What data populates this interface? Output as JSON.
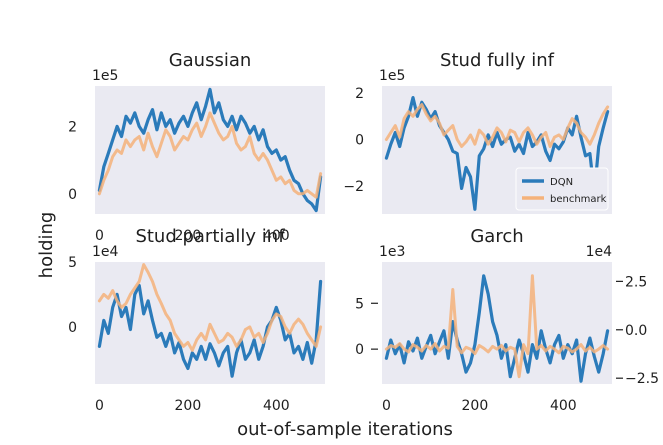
{
  "figure": {
    "xlabel": "out-of-sample iterations",
    "ylabel": "holding"
  },
  "colors": {
    "plot_bg": "#eaeaf2",
    "dqn": "#2b7bba",
    "benchmark": "#f5b27a",
    "text": "#1f1f1f"
  },
  "legend": {
    "location": "lower-right of Stud fully inf panel",
    "entries": [
      "DQN",
      "benchmark"
    ]
  },
  "chart_data": [
    {
      "type": "line",
      "title": "Gaussian",
      "scale_label": "1e5",
      "xlim": [
        -10,
        510
      ],
      "ylim": [
        -0.6,
        3.2
      ],
      "xticks": [
        {
          "v": 0,
          "label": "0"
        },
        {
          "v": 200,
          "label": "200"
        },
        {
          "v": 400,
          "label": "400"
        }
      ],
      "yticks": [
        {
          "v": 0,
          "label": "0"
        },
        {
          "v": 2,
          "label": "2"
        }
      ],
      "series": [
        {
          "name": "DQN",
          "color": "#2b7bba",
          "x": [
            0,
            10,
            20,
            30,
            40,
            50,
            60,
            70,
            80,
            90,
            100,
            110,
            120,
            130,
            140,
            150,
            160,
            170,
            180,
            190,
            200,
            210,
            220,
            230,
            240,
            250,
            260,
            270,
            280,
            290,
            300,
            310,
            320,
            330,
            340,
            350,
            360,
            370,
            380,
            390,
            400,
            410,
            420,
            430,
            440,
            450,
            460,
            470,
            480,
            490,
            500
          ],
          "y": [
            0.1,
            0.8,
            1.2,
            1.6,
            2.0,
            1.7,
            2.3,
            2.1,
            2.4,
            2.0,
            1.8,
            2.2,
            2.5,
            1.9,
            2.4,
            2.0,
            2.2,
            1.8,
            2.1,
            2.3,
            2.0,
            2.4,
            2.7,
            2.2,
            2.6,
            3.1,
            2.4,
            2.7,
            2.2,
            2.0,
            2.3,
            1.9,
            2.3,
            2.1,
            1.8,
            2.0,
            1.6,
            1.9,
            1.4,
            1.2,
            1.3,
            1.0,
            1.1,
            0.7,
            0.4,
            0.3,
            0.0,
            -0.2,
            -0.3,
            -0.5,
            0.5
          ]
        },
        {
          "name": "benchmark",
          "color": "#f5b27a",
          "x": [
            0,
            10,
            20,
            30,
            40,
            50,
            60,
            70,
            80,
            90,
            100,
            110,
            120,
            130,
            140,
            150,
            160,
            170,
            180,
            190,
            200,
            210,
            220,
            230,
            240,
            250,
            260,
            270,
            280,
            290,
            300,
            310,
            320,
            330,
            340,
            350,
            360,
            370,
            380,
            390,
            400,
            410,
            420,
            430,
            440,
            450,
            460,
            470,
            480,
            490,
            500
          ],
          "y": [
            0.0,
            0.4,
            0.7,
            1.1,
            1.3,
            1.2,
            1.6,
            1.4,
            1.6,
            1.7,
            1.3,
            1.8,
            1.4,
            1.1,
            1.5,
            1.9,
            1.7,
            1.3,
            1.5,
            1.7,
            1.6,
            1.9,
            2.1,
            1.7,
            2.0,
            2.4,
            2.1,
            1.8,
            1.6,
            1.7,
            2.0,
            1.5,
            1.3,
            1.4,
            1.7,
            1.2,
            1.0,
            1.2,
            1.0,
            0.7,
            0.4,
            0.5,
            0.3,
            0.4,
            0.1,
            0.0,
            0.0,
            0.1,
            0.0,
            -0.1,
            0.6
          ]
        }
      ]
    },
    {
      "type": "line",
      "title": "Stud fully inf",
      "scale_label": "1e5",
      "xlim": [
        -10,
        510
      ],
      "ylim": [
        -3.2,
        2.3
      ],
      "xticks": [],
      "yticks": [
        {
          "v": 2,
          "label": "2"
        },
        {
          "v": 0,
          "label": "0"
        },
        {
          "v": -2,
          "label": "−2"
        }
      ],
      "series": [
        {
          "name": "DQN",
          "color": "#2b7bba",
          "x": [
            0,
            10,
            20,
            30,
            40,
            50,
            60,
            70,
            80,
            90,
            100,
            110,
            120,
            130,
            140,
            150,
            160,
            170,
            180,
            190,
            200,
            210,
            220,
            230,
            240,
            250,
            260,
            270,
            280,
            290,
            300,
            310,
            320,
            330,
            340,
            350,
            360,
            370,
            380,
            390,
            400,
            410,
            420,
            430,
            440,
            450,
            460,
            470,
            480,
            490,
            500
          ],
          "y": [
            -0.8,
            -0.2,
            0.3,
            -0.3,
            0.5,
            1.0,
            1.8,
            1.0,
            1.6,
            1.3,
            0.9,
            1.2,
            0.6,
            0.3,
            0.0,
            -0.5,
            -0.6,
            -2.1,
            -1.2,
            -1.6,
            -3.0,
            -0.7,
            -0.4,
            0.2,
            -0.3,
            0.3,
            -0.2,
            0.0,
            0.1,
            -0.5,
            -0.2,
            -0.6,
            0.3,
            -0.3,
            -0.1,
            0.2,
            -0.5,
            -0.9,
            -0.2,
            -0.4,
            -0.1,
            0.5,
            0.2,
            1.0,
            0.1,
            -0.7,
            -0.6,
            -2.3,
            -0.3,
            0.5,
            1.2
          ]
        },
        {
          "name": "benchmark",
          "color": "#f5b27a",
          "x": [
            0,
            10,
            20,
            30,
            40,
            50,
            60,
            70,
            80,
            90,
            100,
            110,
            120,
            130,
            140,
            150,
            160,
            170,
            180,
            190,
            200,
            210,
            220,
            230,
            240,
            250,
            260,
            270,
            280,
            290,
            300,
            310,
            320,
            330,
            340,
            350,
            360,
            370,
            380,
            390,
            400,
            410,
            420,
            430,
            440,
            450,
            460,
            470,
            480,
            490,
            500
          ],
          "y": [
            0.0,
            0.3,
            0.6,
            0.1,
            0.9,
            1.2,
            1.0,
            1.3,
            1.5,
            1.1,
            0.8,
            1.0,
            0.7,
            0.2,
            0.4,
            0.6,
            0.0,
            -0.3,
            -0.1,
            0.2,
            -0.2,
            0.4,
            0.2,
            -0.2,
            0.1,
            0.5,
            0.3,
            -0.1,
            0.4,
            0.3,
            -0.1,
            0.3,
            0.5,
            0.2,
            -0.2,
            0.1,
            0.3,
            -0.3,
            0.1,
            0.2,
            0.0,
            0.5,
            0.9,
            0.7,
            0.3,
            0.1,
            -0.2,
            0.2,
            0.7,
            1.1,
            1.4
          ]
        }
      ]
    },
    {
      "type": "line",
      "title": "Stud partially inf",
      "scale_label": "1e4",
      "xlim": [
        -10,
        510
      ],
      "ylim": [
        -4.4,
        5.0
      ],
      "xticks": [
        {
          "v": 0,
          "label": "0"
        },
        {
          "v": 200,
          "label": "200"
        },
        {
          "v": 400,
          "label": "400"
        }
      ],
      "yticks": [
        {
          "v": 5,
          "label": "5"
        },
        {
          "v": 0,
          "label": "0"
        }
      ],
      "series": [
        {
          "name": "DQN",
          "color": "#2b7bba",
          "x": [
            0,
            10,
            20,
            30,
            40,
            50,
            60,
            70,
            80,
            90,
            100,
            110,
            120,
            130,
            140,
            150,
            160,
            170,
            180,
            190,
            200,
            210,
            220,
            230,
            240,
            250,
            260,
            270,
            280,
            290,
            300,
            310,
            320,
            330,
            340,
            350,
            360,
            370,
            380,
            390,
            400,
            410,
            420,
            430,
            440,
            450,
            460,
            470,
            480,
            490,
            500
          ],
          "y": [
            -1.5,
            0.5,
            -0.5,
            1.5,
            2.5,
            0.8,
            1.5,
            -0.2,
            2.5,
            3.2,
            1.0,
            2.0,
            0.5,
            -0.8,
            -0.5,
            -1.5,
            -0.5,
            -2.0,
            -1.2,
            -2.5,
            -3.2,
            -2.0,
            -2.5,
            -1.5,
            -2.5,
            -1.3,
            -2.0,
            -3.0,
            -2.0,
            -1.5,
            -3.8,
            -2.0,
            -1.0,
            -2.5,
            -2.0,
            -1.0,
            -2.5,
            -1.5,
            0.0,
            0.5,
            1.5,
            0.5,
            -1.0,
            -0.5,
            -2.0,
            -1.5,
            -2.5,
            -1.2,
            -2.8,
            -1.0,
            3.5
          ]
        },
        {
          "name": "benchmark",
          "color": "#f5b27a",
          "x": [
            0,
            10,
            20,
            30,
            40,
            50,
            60,
            70,
            80,
            90,
            100,
            110,
            120,
            130,
            140,
            150,
            160,
            170,
            180,
            190,
            200,
            210,
            220,
            230,
            240,
            250,
            260,
            270,
            280,
            290,
            300,
            310,
            320,
            330,
            340,
            350,
            360,
            370,
            380,
            390,
            400,
            410,
            420,
            430,
            440,
            450,
            460,
            470,
            480,
            490,
            500
          ],
          "y": [
            2.0,
            2.5,
            2.2,
            2.8,
            2.0,
            1.5,
            1.8,
            2.5,
            3.0,
            3.5,
            4.8,
            4.2,
            3.5,
            2.5,
            1.8,
            1.0,
            0.5,
            -0.5,
            -1.0,
            -1.5,
            -1.2,
            -1.8,
            -1.0,
            -0.5,
            -1.0,
            0.2,
            -0.5,
            -1.2,
            -1.0,
            -0.5,
            -0.8,
            -1.5,
            -1.0,
            -0.2,
            0.0,
            -0.8,
            -0.5,
            -1.2,
            -0.5,
            0.5,
            1.0,
            0.8,
            0.0,
            -0.5,
            0.2,
            0.6,
            0.2,
            -0.5,
            -1.0,
            -1.5,
            0.0
          ]
        }
      ]
    },
    {
      "type": "line",
      "title": "Garch",
      "scale_label": "1e3",
      "scale_label_right": "1e4",
      "xlim": [
        -10,
        510
      ],
      "ylim": [
        -3.8,
        9.5
      ],
      "ylim_right": [
        -2.8,
        3.5
      ],
      "xticks": [
        {
          "v": 0,
          "label": "0"
        },
        {
          "v": 200,
          "label": "200"
        },
        {
          "v": 400,
          "label": "400"
        }
      ],
      "yticks": [
        {
          "v": 5,
          "label": "5"
        },
        {
          "v": 0,
          "label": "0"
        }
      ],
      "yticks_right": [
        {
          "v": 2.5,
          "label": "2.5"
        },
        {
          "v": 0,
          "label": "0.0"
        },
        {
          "v": -2.5,
          "label": "−2.5"
        }
      ],
      "series": [
        {
          "name": "DQN",
          "color": "#2b7bba",
          "x": [
            0,
            10,
            20,
            30,
            40,
            50,
            60,
            70,
            80,
            90,
            100,
            110,
            120,
            130,
            140,
            150,
            160,
            170,
            180,
            190,
            200,
            210,
            220,
            230,
            240,
            250,
            260,
            270,
            280,
            290,
            300,
            310,
            320,
            330,
            340,
            350,
            360,
            370,
            380,
            390,
            400,
            410,
            420,
            430,
            440,
            450,
            460,
            470,
            480,
            490,
            500
          ],
          "y": [
            -1.0,
            1.0,
            -0.5,
            0.5,
            -1.5,
            0.8,
            -0.2,
            1.2,
            -1.0,
            0.3,
            1.5,
            -0.5,
            0.8,
            2.0,
            -1.0,
            3.0,
            1.0,
            -0.5,
            -2.5,
            -1.5,
            0.5,
            4.0,
            8.0,
            6.0,
            3.0,
            1.5,
            -1.0,
            0.5,
            -3.0,
            -1.0,
            1.0,
            -0.5,
            -2.5,
            0.5,
            -1.0,
            2.0,
            0.0,
            -1.5,
            0.5,
            1.5,
            -1.0,
            0.5,
            -0.5,
            1.0,
            -3.5,
            -0.5,
            1.2,
            -0.8,
            -2.5,
            -0.5,
            2.0
          ]
        },
        {
          "name": "benchmark",
          "color": "#f5b27a",
          "x": [
            0,
            10,
            20,
            30,
            40,
            50,
            60,
            70,
            80,
            90,
            100,
            110,
            120,
            130,
            140,
            150,
            160,
            170,
            180,
            190,
            200,
            210,
            220,
            230,
            240,
            250,
            260,
            270,
            280,
            290,
            300,
            310,
            320,
            330,
            340,
            350,
            360,
            370,
            380,
            390,
            400,
            410,
            420,
            430,
            440,
            450,
            460,
            470,
            480,
            490,
            500
          ],
          "y": [
            0.0,
            0.4,
            0.2,
            0.6,
            0.0,
            -0.3,
            0.5,
            0.2,
            -0.2,
            0.4,
            0.0,
            0.6,
            -0.2,
            0.3,
            0.1,
            6.5,
            0.3,
            -0.4,
            0.2,
            0.0,
            -0.5,
            0.4,
            0.1,
            -0.3,
            0.3,
            0.0,
            0.4,
            -0.2,
            0.2,
            0.0,
            -3.0,
            0.5,
            -0.5,
            8.0,
            0.0,
            0.4,
            -0.2,
            0.3,
            0.0,
            -0.4,
            0.3,
            0.1,
            -0.3,
            0.0,
            0.5,
            -0.2,
            0.2,
            -0.3,
            0.0,
            0.4,
            0.0
          ]
        }
      ]
    }
  ]
}
